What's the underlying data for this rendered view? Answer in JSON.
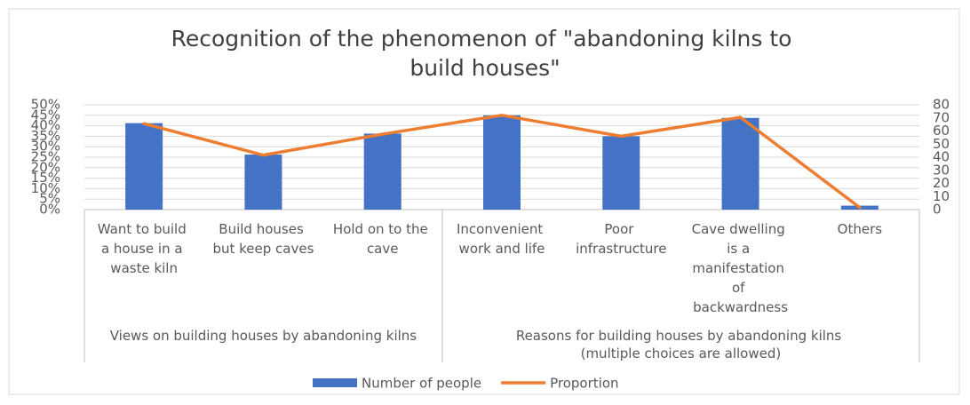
{
  "chart_data": {
    "type": "bar_line",
    "title": "Recognition of the phenomenon of \"abandoning kilns to build houses\"",
    "categories": [
      "Want to build a house in a waste kiln",
      "Build houses but keep caves",
      "Hold on to the cave",
      "Inconvenient work and life",
      "Poor infrastructure",
      "Cave dwelling is a manifestation of backwardness",
      "Others"
    ],
    "groups": [
      {
        "label": "Views on building houses by abandoning kilns",
        "span": 3
      },
      {
        "label": "Reasons for building houses by abandoning kilns (multiple choices are allowed)",
        "span": 4
      }
    ],
    "series": [
      {
        "name": "Number of people",
        "color": "#4472c4",
        "type": "bar",
        "axis": "y2",
        "values": [
          66,
          42,
          58,
          72,
          56,
          70,
          3
        ]
      },
      {
        "name": "Proportion",
        "color": "#ed7d31",
        "type": "line",
        "axis": "y",
        "values": [
          41,
          26,
          36,
          45,
          35,
          44,
          1
        ]
      }
    ],
    "ylim": [
      0,
      50
    ],
    "yticks": [
      {
        "value": 0,
        "label": "0%"
      },
      {
        "value": 5,
        "label": "5%"
      },
      {
        "value": 10,
        "label": "10%"
      },
      {
        "value": 15,
        "label": "15%"
      },
      {
        "value": 20,
        "label": "20%"
      },
      {
        "value": 25,
        "label": "25%"
      },
      {
        "value": 30,
        "label": "30%"
      },
      {
        "value": 35,
        "label": "35%"
      },
      {
        "value": 40,
        "label": "40%"
      },
      {
        "value": 45,
        "label": "45%"
      },
      {
        "value": 50,
        "label": "50%"
      }
    ],
    "y2lim": [
      0,
      80
    ],
    "y2ticks": [
      0,
      10,
      20,
      30,
      40,
      50,
      60,
      70,
      80
    ],
    "grid": true,
    "legend": "bottom"
  }
}
